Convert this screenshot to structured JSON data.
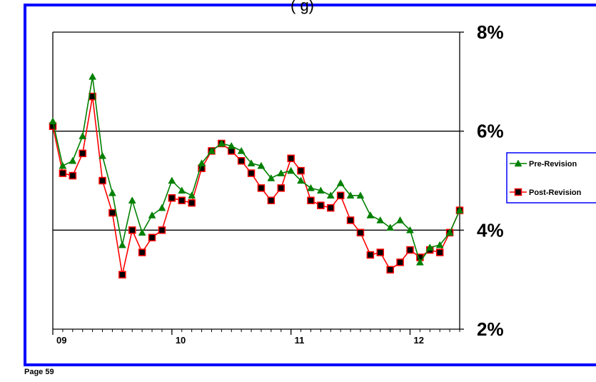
{
  "page": {
    "number_label": "Page 59",
    "title_fragment": "(                                          g)"
  },
  "colors": {
    "frame": "#0000ff",
    "pre": "#008000",
    "post": "#ff0000",
    "marker_fill": "#000000"
  },
  "chart_data": {
    "type": "line",
    "title": "",
    "xlabel": "",
    "ylabel": "",
    "ylim": [
      2,
      8
    ],
    "y_ticks": [
      2,
      4,
      6,
      8
    ],
    "y_tick_labels": [
      "2%",
      "4%",
      "6%",
      "8%"
    ],
    "y_axis_side": "right",
    "gridlines": [
      4,
      6,
      8
    ],
    "x_ticks": [
      2009,
      2010,
      2011,
      2012
    ],
    "x_tick_labels": [
      "09",
      "10",
      "11",
      "12"
    ],
    "legend": {
      "placement": "right"
    },
    "x": [
      2009.0,
      2009.0833,
      2009.1667,
      2009.25,
      2009.3333,
      2009.4167,
      2009.5,
      2009.5833,
      2009.6667,
      2009.75,
      2009.8333,
      2009.9167,
      2010.0,
      2010.0833,
      2010.1667,
      2010.25,
      2010.3333,
      2010.4167,
      2010.5,
      2010.5833,
      2010.6667,
      2010.75,
      2010.8333,
      2010.9167,
      2011.0,
      2011.0833,
      2011.1667,
      2011.25,
      2011.3333,
      2011.4167,
      2011.5,
      2011.5833,
      2011.6667,
      2011.75,
      2011.8333,
      2011.9167,
      2012.0,
      2012.0833,
      2012.1667,
      2012.25,
      2012.3333,
      2012.4167
    ],
    "series": [
      {
        "name": "Pre-Revision",
        "marker": "triangle",
        "values": [
          6.2,
          5.3,
          5.4,
          5.9,
          7.1,
          5.5,
          4.75,
          3.7,
          4.6,
          3.95,
          4.3,
          4.45,
          5.0,
          4.8,
          4.7,
          5.35,
          5.6,
          5.75,
          5.7,
          5.6,
          5.35,
          5.3,
          5.05,
          5.15,
          5.2,
          5.0,
          4.85,
          4.8,
          4.7,
          4.95,
          4.7,
          4.7,
          4.3,
          4.2,
          4.05,
          4.2,
          4.0,
          3.35,
          3.65,
          3.7,
          3.95,
          4.4
        ]
      },
      {
        "name": "Post-Revision",
        "marker": "square",
        "values": [
          6.1,
          5.15,
          5.1,
          5.55,
          6.7,
          5.0,
          4.35,
          3.1,
          4.0,
          3.55,
          3.85,
          4.0,
          4.65,
          4.6,
          4.55,
          5.25,
          5.6,
          5.75,
          5.6,
          5.4,
          5.15,
          4.85,
          4.6,
          4.85,
          5.45,
          5.2,
          4.6,
          4.5,
          4.45,
          4.7,
          4.2,
          3.95,
          3.5,
          3.55,
          3.2,
          3.35,
          3.6,
          3.45,
          3.6,
          3.55,
          3.95,
          4.4
        ]
      }
    ]
  }
}
